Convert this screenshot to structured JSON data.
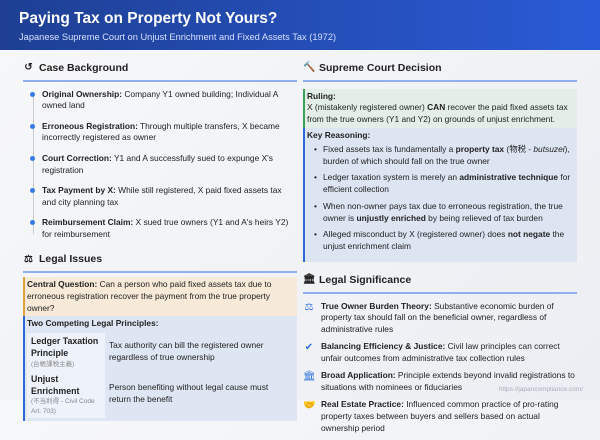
{
  "header": {
    "title": "Paying Tax on Property Not Yours?",
    "subtitle": "Japanese Supreme Court on Unjust Enrichment and Fixed Assets Tax (1972)"
  },
  "background": {
    "heading": "Case Background",
    "icon": "history-icon",
    "items": [
      {
        "label": "Original Ownership:",
        "text": " Company Y1 owned building; Individual A owned land"
      },
      {
        "label": "Erroneous Registration:",
        "text": " Through multiple transfers, X became incorrectly registered as owner"
      },
      {
        "label": "Court Correction:",
        "text": " Y1 and A successfully sued to expunge X's registration"
      },
      {
        "label": "Tax Payment by X:",
        "text": " While still registered, X paid fixed assets tax and city planning tax"
      },
      {
        "label": "Reimbursement Claim:",
        "text": " X sued true owners (Y1 and A's heirs Y2) for reimbursement"
      }
    ]
  },
  "issues": {
    "heading": "Legal Issues",
    "icon": "scale-icon",
    "central_label": "Central Question:",
    "central_text": " Can a person who paid fixed assets tax due to erroneous registration recover the payment from the true property owner?",
    "principles_label": "Two Competing Legal Principles:",
    "principles": [
      {
        "name": "Ledger Taxation Principle",
        "note": "(台帳課税主義)",
        "desc": "Tax authority can bill the registered owner regardless of true ownership"
      },
      {
        "name": "Unjust Enrichment",
        "note": "(不当利得 - Civil Code Art. 703)",
        "desc": "Person benefiting without legal cause must return the benefit"
      }
    ]
  },
  "decision": {
    "heading": "Supreme Court Decision",
    "icon": "gavel-icon",
    "ruling_label": "Ruling:",
    "ruling_a": "X (mistakenly registered owner) ",
    "ruling_b": "CAN",
    "ruling_c": " recover the paid fixed assets tax from the true owners (Y1 and Y2) on grounds of unjust enrichment.",
    "reasoning_label": "Key Reasoning:",
    "reasons": [
      {
        "a": "Fixed assets tax is fundamentally a ",
        "b": "property tax",
        "c": " (物税 - ",
        "i": "butsuzei",
        "d": "), burden of which should fall on the true owner"
      },
      {
        "a": "Ledger taxation system is merely an ",
        "b": "administrative technique",
        "c": " for efficient collection"
      },
      {
        "a": "When non-owner pays tax due to erroneous registration, the true owner is ",
        "b": "unjustly enriched",
        "c": " by being relieved of tax burden"
      },
      {
        "a": "Alleged misconduct by X (registered owner) does ",
        "b": "not negate",
        "c": " the unjust enrichment claim"
      }
    ]
  },
  "significance": {
    "heading": "Legal Significance",
    "icon": "landmark-icon",
    "items": [
      {
        "icon": "scale-icon",
        "label": "True Owner Burden Theory:",
        "text": " Substantive economic burden of property tax should fall on the beneficial owner, regardless of administrative rules"
      },
      {
        "icon": "check-circle-icon",
        "label": "Balancing Efficiency & Justice:",
        "text": " Civil law principles can correct unfair outcomes from administrative tax collection rules"
      },
      {
        "icon": "landmark-icon",
        "label": "Broad Application:",
        "text": " Principle extends beyond invalid registrations to situations with nominees or fiduciaries"
      },
      {
        "icon": "handshake-icon",
        "label": "Real Estate Practice:",
        "text": " Influenced common practice of pro-rating property taxes between buyers and sellers based on actual ownership period"
      }
    ]
  },
  "footer": {
    "url": "https://japancompliance.com/"
  },
  "colors": {
    "header": "#1e3f93",
    "accent": "#3b7be0",
    "ruling": "#3aa05a",
    "question": "#e0a040"
  }
}
